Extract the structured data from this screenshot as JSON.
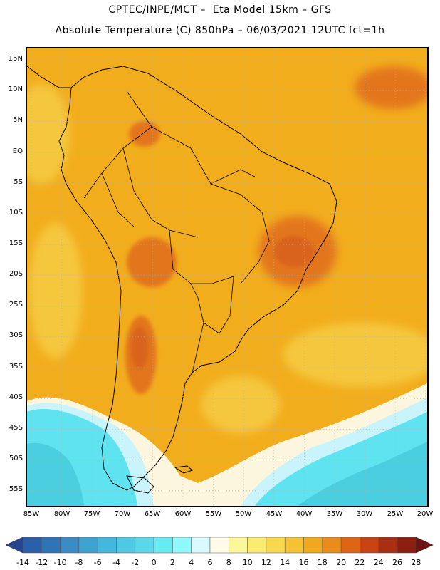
{
  "header": {
    "line1": "CPTEC/INPE/MCT –  Eta Model 15km – GFS",
    "line2": "Absolute Temperature (C) 850hPa – 06/03/2021 12UTC fct=1h"
  },
  "map": {
    "lat_labels": [
      "15N",
      "10N",
      "5N",
      "EQ",
      "5S",
      "10S",
      "15S",
      "20S",
      "25S",
      "30S",
      "35S",
      "40S",
      "45S",
      "50S",
      "55S"
    ],
    "lon_labels": [
      "85W",
      "80W",
      "75W",
      "70W",
      "65W",
      "60W",
      "55W",
      "50W",
      "45W",
      "40W",
      "35W",
      "30W",
      "25W",
      "20W"
    ],
    "colors": {
      "ocean_warm": "#f2ad1c",
      "land_warm": "#eea21e",
      "hot": "#e3761e",
      "very_hot": "#d9631c",
      "mild": "#f5c73c",
      "cool_yellow": "#f9e28a",
      "cream": "#fdf6de",
      "pale_cyan": "#c9f4fb",
      "cyan": "#60e3f0",
      "cold_cyan": "#49cfe0",
      "border": "#000000"
    }
  },
  "colorbar": {
    "labels": [
      "-14",
      "-12",
      "-10",
      "-8",
      "-6",
      "-4",
      "-2",
      "0",
      "2",
      "4",
      "6",
      "8",
      "10",
      "12",
      "14",
      "16",
      "18",
      "20",
      "22",
      "24",
      "26",
      "28"
    ],
    "colors": [
      "#27448f",
      "#2b5ea8",
      "#2f74b6",
      "#3b8bc4",
      "#3fa3d1",
      "#45b7dc",
      "#4ec8e3",
      "#5ad8ea",
      "#66ebf3",
      "#8ef8fb",
      "#d8f9fd",
      "#fffbe6",
      "#fdf79c",
      "#fbeb72",
      "#f8d84c",
      "#f5c233",
      "#f0a81e",
      "#ea8c1a",
      "#de6416",
      "#c94414",
      "#a92f12",
      "#8c1f10",
      "#6e1410"
    ]
  }
}
